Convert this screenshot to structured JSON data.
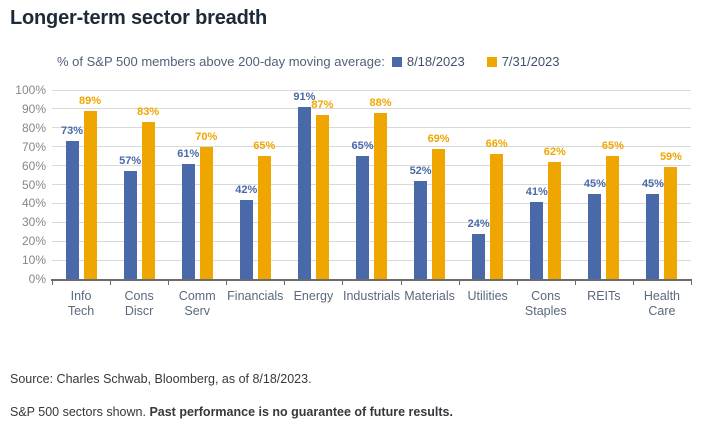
{
  "title": "Longer-term sector breadth",
  "subtitle": "% of S&P 500 members above 200-day moving average:",
  "legend": [
    {
      "label": "8/18/2023",
      "color": "#4A69A8"
    },
    {
      "label": "7/31/2023",
      "color": "#EFA600"
    }
  ],
  "chart_data": {
    "type": "bar",
    "title": "Longer-term sector breadth",
    "subtitle": "% of S&P 500 members above 200-day moving average:",
    "categories": [
      "Info Tech",
      "Cons Discr",
      "Comm Serv",
      "Financials",
      "Energy",
      "Industrials",
      "Materials",
      "Utilities",
      "Cons Staples",
      "REITs",
      "Health Care"
    ],
    "series": [
      {
        "name": "8/18/2023",
        "color": "#4A69A8",
        "values": [
          73,
          57,
          61,
          42,
          91,
          65,
          52,
          24,
          41,
          45,
          45
        ]
      },
      {
        "name": "7/31/2023",
        "color": "#EFA600",
        "values": [
          89,
          83,
          70,
          65,
          87,
          88,
          69,
          66,
          62,
          65,
          59
        ]
      }
    ],
    "xlabel": "",
    "ylabel": "",
    "ylim": [
      0,
      100
    ],
    "ytick_step": 10,
    "ytick_format": "percent",
    "grid": true,
    "legend_position": "top",
    "data_labels": "percent",
    "colors": {
      "gridline": "#d9d9d9",
      "axis": "#6b6b6b",
      "y_tick_text": "#878787",
      "x_tick_text": "#596a7c"
    }
  },
  "footer": {
    "source": "Source: Charles Schwab, Bloomberg, as of 8/18/2023.",
    "disclaimer_regular": "S&P 500 sectors shown. ",
    "disclaimer_bold": "Past performance is no guarantee of future results."
  }
}
